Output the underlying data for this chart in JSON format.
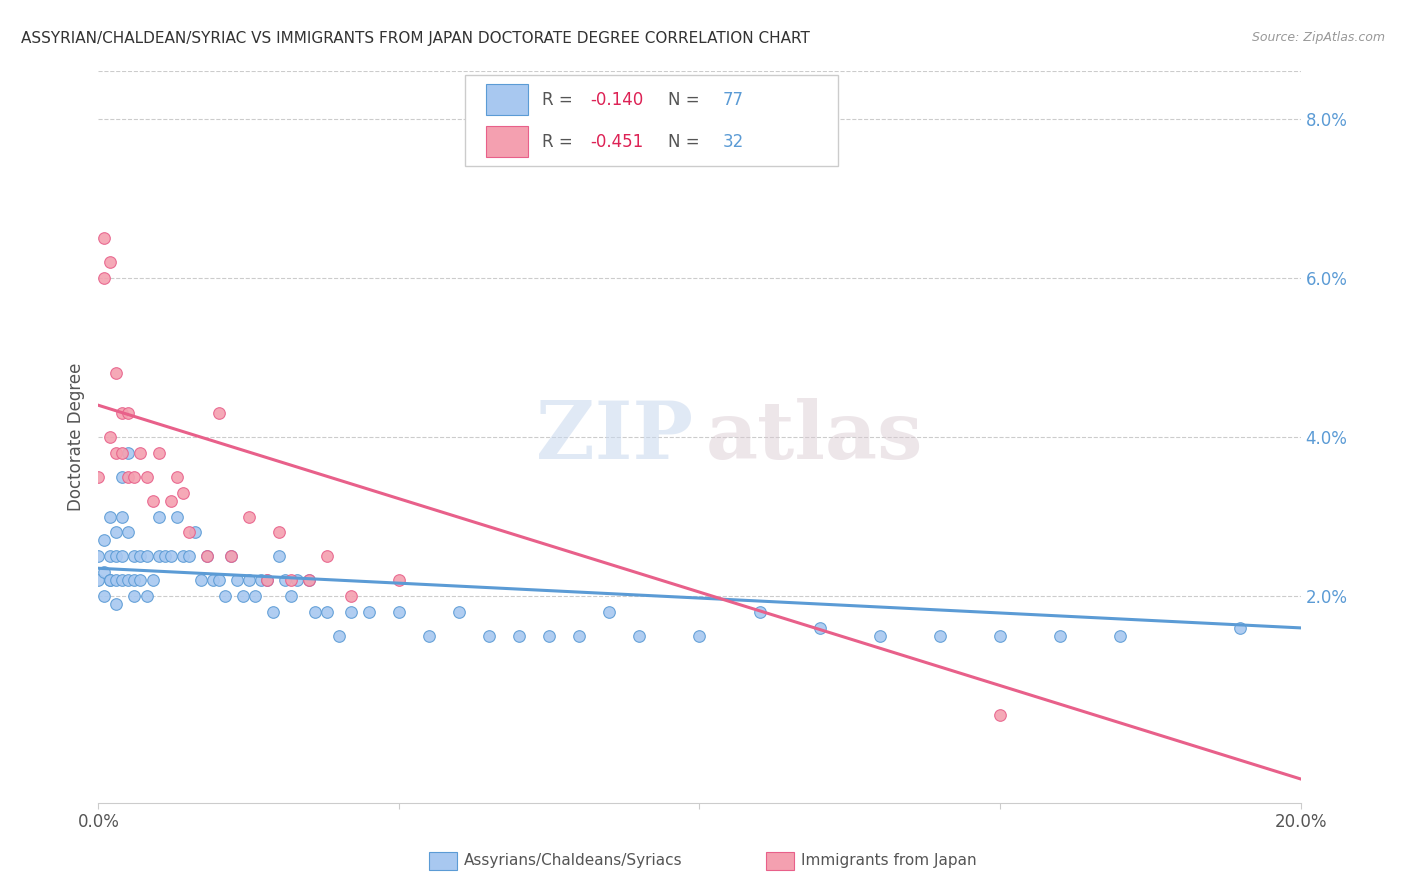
{
  "title": "ASSYRIAN/CHALDEAN/SYRIAC VS IMMIGRANTS FROM JAPAN DOCTORATE DEGREE CORRELATION CHART",
  "source": "Source: ZipAtlas.com",
  "ylabel": "Doctorate Degree",
  "right_yticks": [
    "8.0%",
    "6.0%",
    "4.0%",
    "2.0%"
  ],
  "right_ytick_vals": [
    0.08,
    0.06,
    0.04,
    0.02
  ],
  "legend1_color": "#a8c8f0",
  "legend2_color": "#f4a0b0",
  "line1_color": "#5b9bd5",
  "line2_color": "#e8608a",
  "watermark_zip": "ZIP",
  "watermark_atlas": "atlas",
  "scatter1_x": [
    0.0,
    0.0,
    0.001,
    0.001,
    0.001,
    0.002,
    0.002,
    0.002,
    0.002,
    0.003,
    0.003,
    0.003,
    0.003,
    0.004,
    0.004,
    0.004,
    0.004,
    0.005,
    0.005,
    0.005,
    0.006,
    0.006,
    0.006,
    0.007,
    0.007,
    0.008,
    0.008,
    0.009,
    0.01,
    0.01,
    0.011,
    0.012,
    0.013,
    0.014,
    0.015,
    0.016,
    0.017,
    0.018,
    0.019,
    0.02,
    0.021,
    0.022,
    0.023,
    0.024,
    0.025,
    0.026,
    0.027,
    0.028,
    0.029,
    0.03,
    0.031,
    0.032,
    0.033,
    0.035,
    0.036,
    0.038,
    0.04,
    0.042,
    0.045,
    0.05,
    0.055,
    0.06,
    0.065,
    0.07,
    0.075,
    0.08,
    0.085,
    0.09,
    0.1,
    0.11,
    0.12,
    0.13,
    0.14,
    0.15,
    0.16,
    0.17,
    0.19
  ],
  "scatter1_y": [
    0.022,
    0.025,
    0.027,
    0.023,
    0.02,
    0.025,
    0.022,
    0.03,
    0.022,
    0.028,
    0.025,
    0.022,
    0.019,
    0.035,
    0.03,
    0.025,
    0.022,
    0.038,
    0.028,
    0.022,
    0.022,
    0.025,
    0.02,
    0.025,
    0.022,
    0.025,
    0.02,
    0.022,
    0.03,
    0.025,
    0.025,
    0.025,
    0.03,
    0.025,
    0.025,
    0.028,
    0.022,
    0.025,
    0.022,
    0.022,
    0.02,
    0.025,
    0.022,
    0.02,
    0.022,
    0.02,
    0.022,
    0.022,
    0.018,
    0.025,
    0.022,
    0.02,
    0.022,
    0.022,
    0.018,
    0.018,
    0.015,
    0.018,
    0.018,
    0.018,
    0.015,
    0.018,
    0.015,
    0.015,
    0.015,
    0.015,
    0.018,
    0.015,
    0.015,
    0.018,
    0.016,
    0.015,
    0.015,
    0.015,
    0.015,
    0.015,
    0.016
  ],
  "scatter2_x": [
    0.0,
    0.001,
    0.001,
    0.002,
    0.002,
    0.003,
    0.003,
    0.004,
    0.004,
    0.005,
    0.005,
    0.006,
    0.007,
    0.008,
    0.009,
    0.01,
    0.012,
    0.013,
    0.014,
    0.015,
    0.018,
    0.02,
    0.022,
    0.025,
    0.028,
    0.03,
    0.032,
    0.035,
    0.038,
    0.042,
    0.05,
    0.15
  ],
  "scatter2_y": [
    0.035,
    0.06,
    0.065,
    0.062,
    0.04,
    0.048,
    0.038,
    0.043,
    0.038,
    0.035,
    0.043,
    0.035,
    0.038,
    0.035,
    0.032,
    0.038,
    0.032,
    0.035,
    0.033,
    0.028,
    0.025,
    0.043,
    0.025,
    0.03,
    0.022,
    0.028,
    0.022,
    0.022,
    0.025,
    0.02,
    0.022,
    0.005
  ],
  "trendline1_x": [
    0.0,
    0.2
  ],
  "trendline1_y": [
    0.0235,
    0.016
  ],
  "trendline2_x": [
    0.0,
    0.2
  ],
  "trendline2_y": [
    0.044,
    -0.003
  ],
  "xlim": [
    0.0,
    0.2
  ],
  "ylim": [
    -0.006,
    0.086
  ]
}
